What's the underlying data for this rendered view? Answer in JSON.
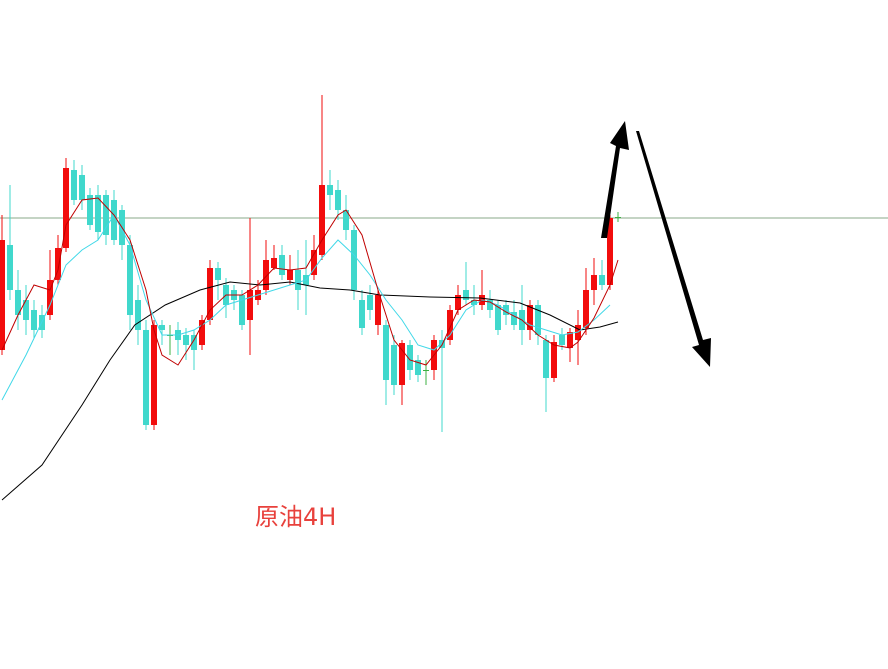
{
  "chart_data": {
    "type": "candlestick",
    "title": "原油4H",
    "open": [
      650,
      755,
      710,
      700,
      690,
      685,
      685,
      720,
      752,
      830,
      825,
      805,
      805,
      805,
      800,
      790,
      755,
      700,
      670,
      575,
      675,
      665,
      670,
      665,
      665,
      655,
      680,
      732,
      715,
      710,
      705,
      680,
      700,
      710,
      732,
      745,
      720,
      730,
      725,
      725,
      745,
      815,
      810,
      790,
      770,
      700,
      705,
      675,
      675,
      655,
      615,
      655,
      640,
      630,
      630,
      660,
      660,
      690,
      710,
      700,
      695,
      700,
      695,
      695,
      688,
      690,
      670,
      695,
      660,
      622,
      665,
      652,
      660,
      672,
      710,
      725,
      715,
      783
    ],
    "close": [
      760,
      710,
      685,
      680,
      670,
      670,
      720,
      752,
      832,
      800,
      800,
      775,
      768,
      765,
      760,
      755,
      685,
      670,
      575,
      675,
      670,
      665,
      660,
      655,
      650,
      680,
      732,
      720,
      695,
      700,
      675,
      710,
      710,
      740,
      742,
      725,
      730,
      710,
      715,
      750,
      815,
      805,
      790,
      770,
      710,
      672,
      690,
      705,
      620,
      615,
      657,
      630,
      625,
      630,
      660,
      652,
      690,
      705,
      700,
      695,
      705,
      690,
      670,
      685,
      675,
      670,
      695,
      665,
      622,
      658,
      655,
      668,
      675,
      710,
      725,
      715,
      782,
      783
    ],
    "high": [
      785,
      815,
      730,
      715,
      700,
      695,
      750,
      765,
      842,
      840,
      835,
      812,
      815,
      810,
      810,
      795,
      765,
      715,
      680,
      680,
      680,
      675,
      678,
      672,
      670,
      685,
      740,
      738,
      722,
      715,
      710,
      782,
      720,
      760,
      755,
      755,
      745,
      750,
      760,
      765,
      905,
      830,
      820,
      805,
      775,
      710,
      715,
      710,
      680,
      665,
      660,
      660,
      645,
      640,
      665,
      670,
      695,
      715,
      738,
      715,
      730,
      710,
      700,
      700,
      700,
      715,
      700,
      700,
      665,
      665,
      672,
      672,
      690,
      732,
      742,
      740,
      785,
      788
    ],
    "low": [
      645,
      700,
      670,
      665,
      662,
      662,
      680,
      715,
      748,
      795,
      790,
      770,
      760,
      755,
      755,
      740,
      670,
      655,
      570,
      570,
      655,
      645,
      645,
      640,
      630,
      650,
      675,
      700,
      682,
      690,
      670,
      645,
      695,
      705,
      730,
      720,
      715,
      690,
      685,
      720,
      740,
      790,
      780,
      760,
      700,
      665,
      680,
      665,
      595,
      605,
      595,
      620,
      618,
      615,
      620,
      568,
      655,
      685,
      695,
      685,
      690,
      682,
      665,
      675,
      670,
      655,
      660,
      655,
      588,
      618,
      650,
      638,
      635,
      665,
      695,
      710,
      710,
      778
    ],
    "up_color": "#f20d0d",
    "down_color": "#40d8cc",
    "doji_color": "#3cb043",
    "xlim": [
      -0.25,
      110.75
    ],
    "ylim": [
      331,
      1000
    ],
    "reference_line": {
      "value": 782,
      "color": "#8aa88a"
    },
    "lines": [
      {
        "color": "#000000",
        "x": [
          0,
          5,
          10,
          13.5,
          16.6,
          20.4,
          24.75,
          28.5,
          32.25,
          36,
          39.75,
          43.5,
          47.25,
          53.5,
          59.75,
          64.75,
          68.5,
          72.25,
          74.75,
          77
        ],
        "values": [
          500,
          535,
          595,
          640,
          675,
          695,
          710,
          718,
          715,
          718,
          712,
          710,
          705,
          703,
          702,
          697,
          685,
          670,
          673,
          678
        ]
      },
      {
        "color": "#40d8e8",
        "x": [
          0,
          3,
          6,
          8,
          10,
          12,
          14,
          16,
          18,
          20,
          22,
          24,
          26,
          28,
          30,
          32,
          34,
          36,
          38,
          40,
          42,
          44,
          46,
          48,
          50,
          52,
          54,
          56,
          58,
          60,
          62,
          64,
          66,
          68,
          70,
          72,
          74,
          76
        ],
        "values": [
          600,
          645,
          695,
          735,
          750,
          760,
          785,
          755,
          700,
          665,
          665,
          670,
          680,
          695,
          700,
          705,
          710,
          715,
          720,
          742,
          760,
          745,
          725,
          700,
          680,
          655,
          650,
          665,
          690,
          700,
          695,
          685,
          675,
          670,
          665,
          668,
          680,
          695
        ]
      },
      {
        "color": "#c00000",
        "x": [
          0,
          2,
          4,
          6,
          7,
          8,
          10,
          12,
          14,
          16,
          18,
          19,
          20,
          22,
          24,
          26,
          28,
          30,
          32,
          34,
          36,
          38,
          40,
          42,
          43,
          45,
          47,
          49,
          51,
          53,
          55,
          57,
          59,
          61,
          63,
          65,
          67,
          69,
          71,
          72,
          74,
          76,
          77
        ],
        "values": [
          650,
          685,
          715,
          710,
          730,
          775,
          800,
          802,
          785,
          760,
          710,
          670,
          645,
          635,
          660,
          690,
          705,
          705,
          715,
          732,
          730,
          732,
          760,
          785,
          790,
          765,
          710,
          660,
          640,
          635,
          655,
          690,
          700,
          698,
          688,
          680,
          665,
          655,
          652,
          658,
          682,
          715,
          740
        ]
      }
    ]
  }
}
